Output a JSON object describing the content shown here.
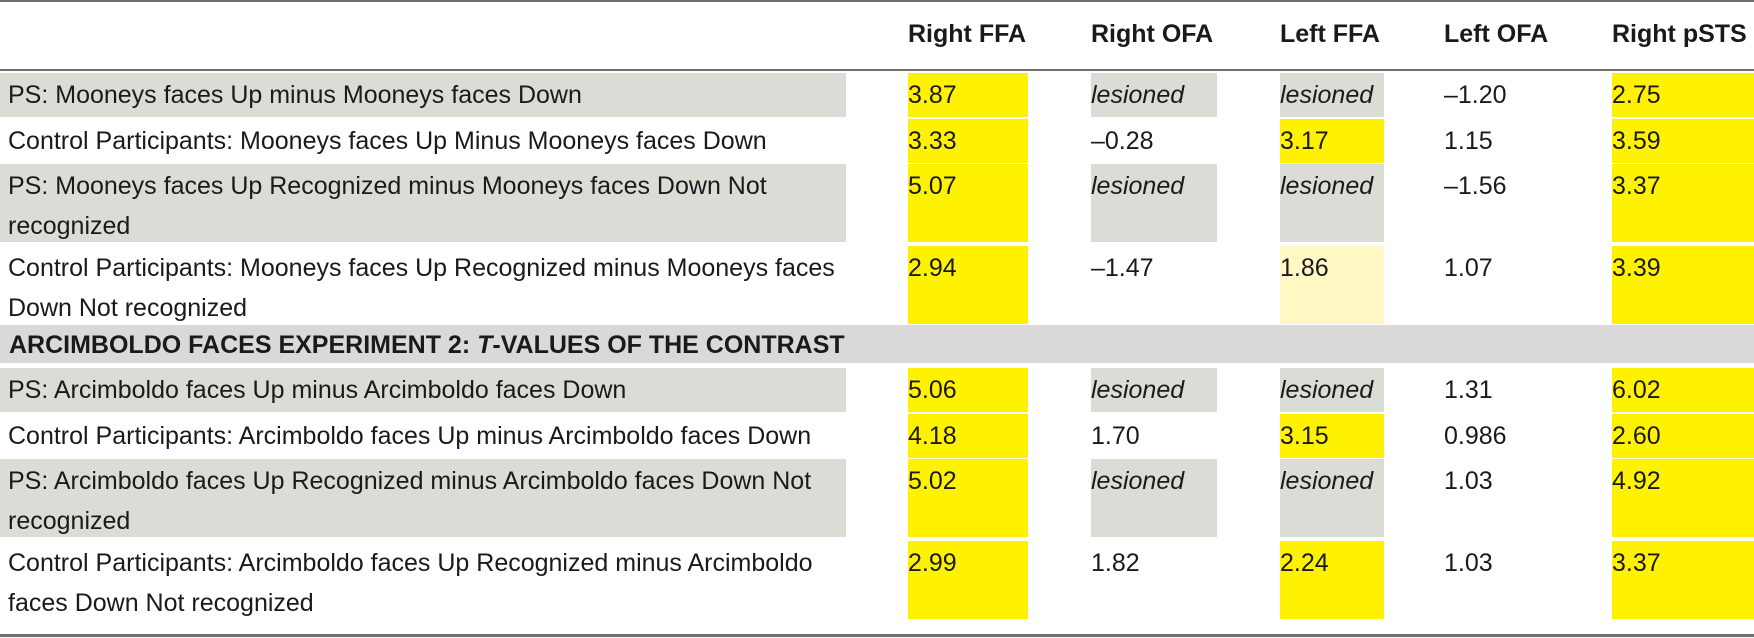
{
  "table": {
    "columns": [
      "Right FFA",
      "Right OFA",
      "Left FFA",
      "Left OFA",
      "Right pSTS"
    ],
    "section_heading": {
      "pre": "ARCIMBOLDO FACES EXPERIMENT 2: ",
      "italic": "T",
      "post": "-VALUES OF THE CONTRAST"
    },
    "rows": [
      {
        "label": [
          "PS: Mooneys faces Up minus Mooneys faces Down"
        ],
        "values": [
          "3.87",
          "lesioned",
          "lesioned",
          "–1.20",
          "2.75"
        ]
      },
      {
        "label": [
          "Control Participants: Mooneys faces Up Minus Mooneys faces Down"
        ],
        "values": [
          "3.33",
          "–0.28",
          "3.17",
          "1.15",
          "3.59"
        ]
      },
      {
        "label": [
          "PS: Mooneys faces Up Recognized minus Mooneys faces Down Not",
          "recognized"
        ],
        "values": [
          "5.07",
          "lesioned",
          "lesioned",
          "–1.56",
          "3.37"
        ]
      },
      {
        "label": [
          "Control Participants: Mooneys faces Up Recognized minus Mooneys faces",
          "Down Not recognized"
        ],
        "values": [
          "2.94",
          "–1.47",
          "1.86",
          "1.07",
          "3.39"
        ]
      },
      {
        "label": [
          "PS: Arcimboldo faces Up minus Arcimboldo faces Down"
        ],
        "values": [
          "5.06",
          "lesioned",
          "lesioned",
          "1.31",
          "6.02"
        ]
      },
      {
        "label": [
          "Control Participants: Arcimboldo faces Up minus Arcimboldo faces Down"
        ],
        "values": [
          "4.18",
          "1.70",
          "3.15",
          "0.986",
          "2.60"
        ]
      },
      {
        "label": [
          "PS: Arcimboldo faces Up Recognized minus Arcimboldo faces Down Not",
          "recognized"
        ],
        "values": [
          "5.02",
          "lesioned",
          "lesioned",
          "1.03",
          "4.92"
        ]
      },
      {
        "label": [
          "Control Participants: Arcimboldo faces Up Recognized minus Arcimboldo",
          "faces Down Not recognized"
        ],
        "values": [
          "2.99",
          "1.82",
          "2.24",
          "1.03",
          "3.37"
        ]
      }
    ],
    "highlights": [
      [
        "yellow",
        "gray",
        "gray",
        "none",
        "yellow"
      ],
      [
        "yellow",
        "none",
        "yellow",
        "none",
        "yellow"
      ],
      [
        "yellow",
        "gray",
        "gray",
        "none",
        "yellow"
      ],
      [
        "yellow",
        "none",
        "pale",
        "none",
        "yellow"
      ],
      [
        "yellow",
        "gray",
        "gray",
        "none",
        "yellow"
      ],
      [
        "yellow",
        "none",
        "yellow",
        "none",
        "yellow"
      ],
      [
        "yellow",
        "gray",
        "gray",
        "none",
        "yellow"
      ],
      [
        "yellow",
        "none",
        "yellow",
        "none",
        "yellow"
      ]
    ],
    "gray_label_rows": [
      0,
      2,
      4,
      6
    ],
    "colors": {
      "yellow": "#fff200",
      "pale_yellow": "#fff8c4",
      "gray": "#dcdcd6",
      "section": "#d9d9d9",
      "rule": "#6e6e6e"
    }
  }
}
